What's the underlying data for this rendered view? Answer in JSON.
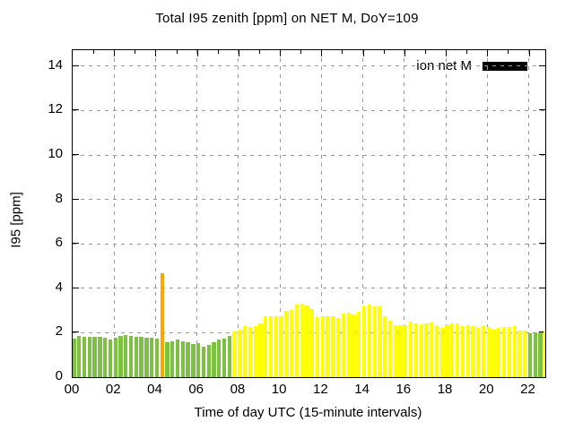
{
  "title": "Total I95 zenith [ppm] on NET M, DoY=109",
  "legend": {
    "label": "ion net M",
    "swatch_color": "#000000"
  },
  "axes": {
    "y_label": "I95 [ppm]",
    "x_label": "Time of day UTC (15-minute intervals)",
    "y_tick_values": [
      0,
      2,
      4,
      6,
      8,
      10,
      12,
      14
    ],
    "x_tick_hours": [
      0,
      2,
      4,
      6,
      8,
      10,
      12,
      14,
      16,
      18,
      20,
      22
    ],
    "x_tick_labels": [
      "00",
      "02",
      "04",
      "06",
      "08",
      "10",
      "12",
      "14",
      "16",
      "18",
      "20",
      "22"
    ],
    "minor_x_tick_every_hours": 1
  },
  "chart_data": {
    "type": "bar",
    "title": "Total I95 zenith [ppm] on NET M, DoY=109",
    "xlabel": "Time of day UTC (15-minute intervals)",
    "ylabel": "I95 [ppm]",
    "x_start": "00:00",
    "x_step_minutes": 15,
    "x_max_hour": 22.8,
    "ylim": [
      0,
      14.72
    ],
    "grid": "dashed gray at 2-ppm and 2-hour intervals",
    "legend_position": "top-right inside",
    "series_name": "ion net M",
    "colors": {
      "g": "#7dc142",
      "y": "#ffff00",
      "o": "#ffa500"
    },
    "values": [
      1.74,
      1.87,
      1.8,
      1.82,
      1.82,
      1.81,
      1.79,
      1.7,
      1.76,
      1.84,
      1.88,
      1.84,
      1.81,
      1.81,
      1.79,
      1.76,
      1.73,
      4.67,
      1.57,
      1.62,
      1.68,
      1.61,
      1.58,
      1.51,
      1.54,
      1.37,
      1.45,
      1.58,
      1.68,
      1.74,
      1.84,
      2.04,
      2.15,
      2.31,
      2.26,
      2.29,
      2.42,
      2.73,
      2.73,
      2.76,
      2.73,
      3.0,
      3.03,
      3.27,
      3.3,
      3.23,
      3.06,
      2.69,
      2.76,
      2.76,
      2.73,
      2.65,
      2.87,
      2.92,
      2.83,
      2.96,
      3.19,
      3.27,
      3.17,
      3.17,
      2.76,
      2.56,
      2.35,
      2.33,
      2.33,
      2.49,
      2.42,
      2.38,
      2.42,
      2.45,
      2.29,
      2.22,
      2.35,
      2.42,
      2.42,
      2.29,
      2.33,
      2.29,
      2.26,
      2.28,
      2.26,
      2.15,
      2.22,
      2.24,
      2.25,
      2.29,
      2.08,
      2.11,
      1.98,
      2.02,
      2.0,
      2.06
    ],
    "bar_colors": [
      "g",
      "g",
      "g",
      "g",
      "g",
      "g",
      "g",
      "g",
      "g",
      "g",
      "g",
      "g",
      "g",
      "g",
      "g",
      "g",
      "g",
      "o",
      "g",
      "g",
      "g",
      "g",
      "g",
      "g",
      "g",
      "g",
      "g",
      "g",
      "g",
      "g",
      "g",
      "y",
      "y",
      "y",
      "y",
      "y",
      "y",
      "y",
      "y",
      "y",
      "y",
      "y",
      "y",
      "y",
      "y",
      "y",
      "y",
      "y",
      "y",
      "y",
      "y",
      "y",
      "y",
      "y",
      "y",
      "y",
      "y",
      "y",
      "y",
      "y",
      "y",
      "y",
      "y",
      "y",
      "y",
      "y",
      "y",
      "y",
      "y",
      "y",
      "y",
      "y",
      "y",
      "y",
      "y",
      "y",
      "y",
      "y",
      "y",
      "y",
      "y",
      "y",
      "y",
      "y",
      "y",
      "y",
      "y",
      "y",
      "g",
      "g",
      "g",
      "y"
    ]
  }
}
